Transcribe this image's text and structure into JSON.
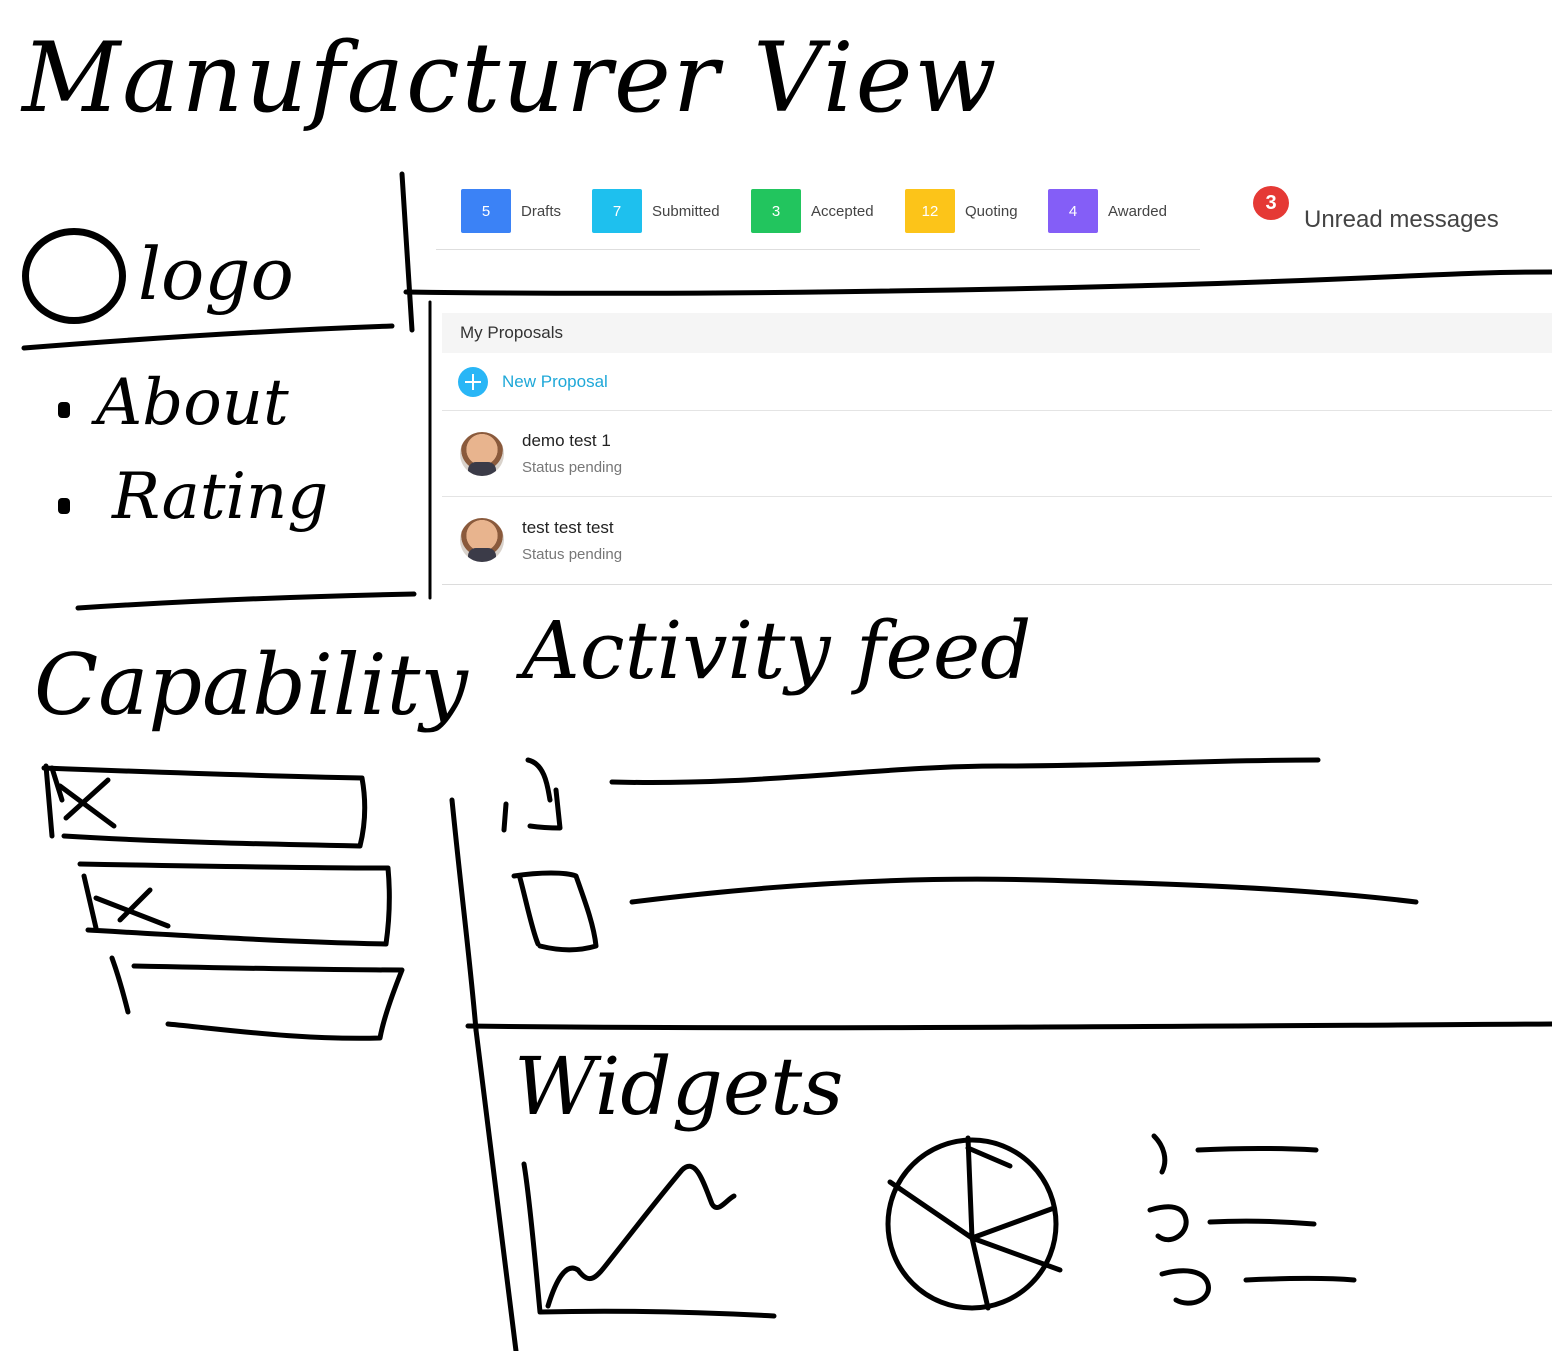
{
  "title": "Manufacturer View",
  "sidebar": {
    "logo": "logo",
    "items": [
      {
        "label": "About"
      },
      {
        "label": "Rating"
      }
    ],
    "capability_title": "Capability"
  },
  "status_bar": {
    "items": [
      {
        "count": "5",
        "label": "Drafts",
        "color": "#3b82f6"
      },
      {
        "count": "7",
        "label": "Submitted",
        "color": "#1ec0ee"
      },
      {
        "count": "3",
        "label": "Accepted",
        "color": "#22c55e"
      },
      {
        "count": "12",
        "label": "Quoting",
        "color": "#fcc419"
      },
      {
        "count": "4",
        "label": "Awarded",
        "color": "#845ef7"
      }
    ],
    "unread": {
      "count": "3",
      "label": "Unread messages",
      "color": "#e53935"
    }
  },
  "proposals": {
    "header": "My Proposals",
    "new_label": "New Proposal",
    "items": [
      {
        "title": "demo test 1",
        "status": "Status pending"
      },
      {
        "title": "test test test",
        "status": "Status pending"
      }
    ]
  },
  "activity_feed": {
    "title": "Activity feed"
  },
  "widgets": {
    "title": "Widgets"
  }
}
